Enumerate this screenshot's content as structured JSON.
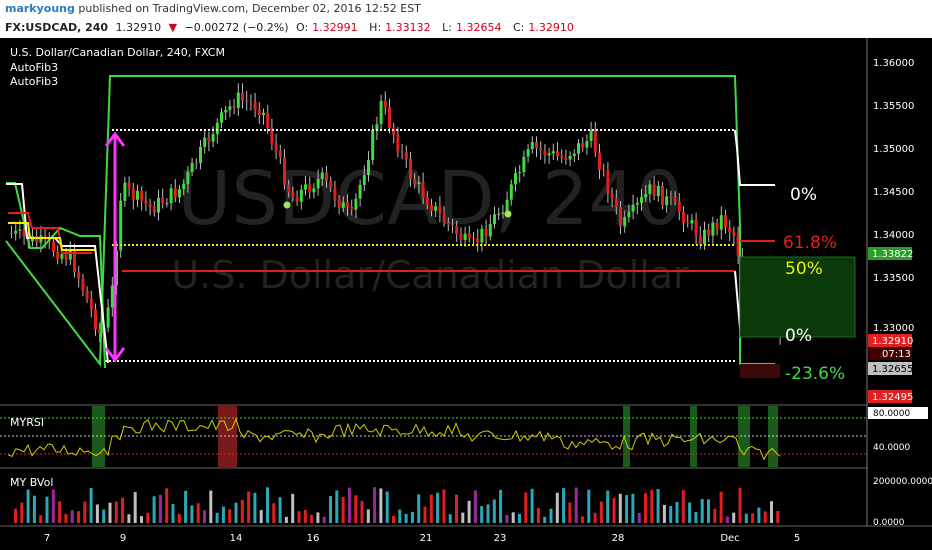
{
  "publish": {
    "author": "markyoung",
    "text": "published on TradingView.com, December 02, 2016 12:52 EST"
  },
  "symbol": {
    "ticker": "FX:USDCAD, 240",
    "last": "1.32910",
    "arrow": "▼",
    "change": "−0.00272 (−0.2%)",
    "o_label": "O:",
    "o": "1.32991",
    "h_label": "H:",
    "h": "1.33132",
    "l_label": "L:",
    "l": "1.32654",
    "c_label": "C:",
    "c": "1.32910"
  },
  "legend": {
    "title": "U.S. Dollar/Canadian Dollar, 240, FXCM",
    "ind1": "AutoFib3",
    "ind2": "AutoFib3"
  },
  "watermark": {
    "symbol": "USDCAD, 240",
    "name": "U.S. Dollar/Canadian Dollar"
  },
  "price_axis": [
    "1.36000",
    "1.35500",
    "1.35000",
    "1.34500",
    "1.34000",
    "1.33500",
    "1.33000",
    "1.32495"
  ],
  "price_tags": {
    "green": "1.33822",
    "red": "1.32910",
    "timer": "07:13",
    "gray": "1.32655",
    "bottom": "1.32495"
  },
  "fib_labels": {
    "l0_top": "0%",
    "l618": "61.8%",
    "l50": "50%",
    "l0_low": "0%",
    "lneg236": "-23.6%"
  },
  "rsi": {
    "title": "MYRSI",
    "axis_hi": "80.0000",
    "axis_mid": "40.0000"
  },
  "bvol": {
    "title": "MY BVol",
    "axis_hi": "200000.0000",
    "axis_lo": "0.0000"
  },
  "time_axis": [
    "7",
    "9",
    "14",
    "16",
    "21",
    "23",
    "28",
    "Dec",
    "5"
  ],
  "colors": {
    "green": "#3fdc3f",
    "red": "#e02020",
    "white": "#ffffff",
    "yellow": "#f0f000",
    "magenta": "#ff33ff",
    "bg": "#000000"
  },
  "chart_data": {
    "type": "candlestick",
    "title": "U.S. Dollar/Canadian Dollar, 240, FXCM",
    "ylim": [
      1.3245,
      1.3615
    ],
    "fib_levels": [
      {
        "label": "0%",
        "price": 1.3465
      },
      {
        "label": "61.8%",
        "price": 1.3402
      },
      {
        "label": "50%",
        "price": 1.3386
      },
      {
        "label": "0%",
        "price": 1.33
      },
      {
        "label": "-23.6%",
        "price": 1.3267
      }
    ]
  }
}
